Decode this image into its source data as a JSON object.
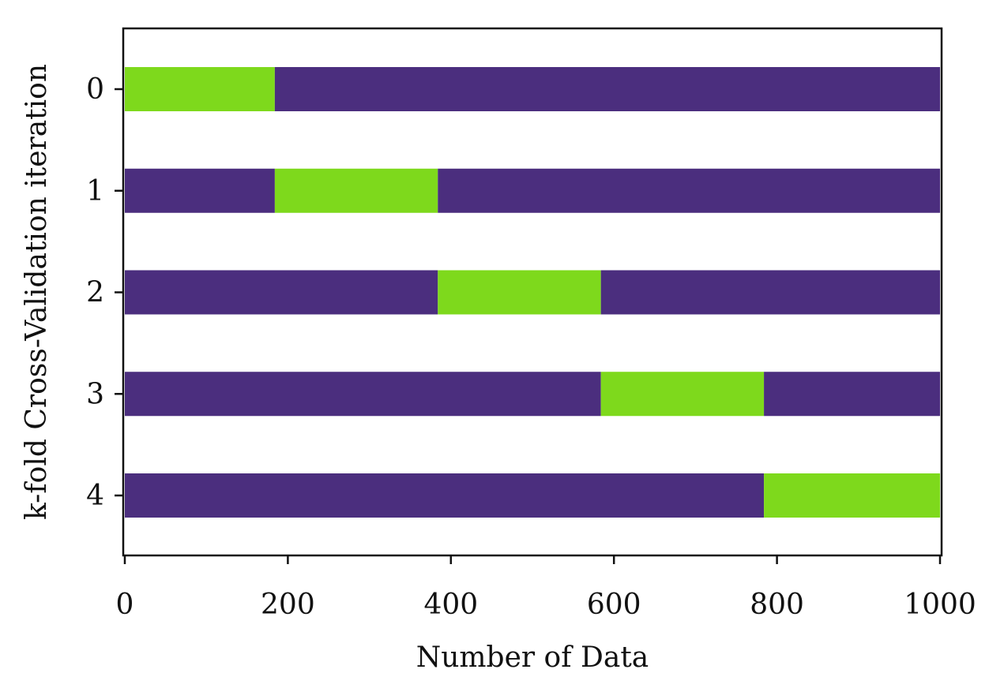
{
  "chart_data": {
    "type": "bar",
    "orientation": "horizontal",
    "stacked": true,
    "title": "",
    "xlabel": "Number of Data",
    "ylabel": "k-fold Cross-Validation iteration",
    "xlim": [
      0,
      1000
    ],
    "xticks": [
      0,
      200,
      400,
      600,
      800,
      1000
    ],
    "categories": [
      "0",
      "1",
      "2",
      "3",
      "4"
    ],
    "grid": false,
    "legend": "none",
    "colors": {
      "train": "#4b2e7e",
      "validation": "#7ed91c",
      "axis": "#111111"
    },
    "iterations": [
      {
        "label": "0",
        "segments": [
          {
            "role": "validation",
            "start": 0,
            "end": 184
          },
          {
            "role": "train",
            "start": 184,
            "end": 1000
          }
        ]
      },
      {
        "label": "1",
        "segments": [
          {
            "role": "train",
            "start": 0,
            "end": 184
          },
          {
            "role": "validation",
            "start": 184,
            "end": 384
          },
          {
            "role": "train",
            "start": 384,
            "end": 1000
          }
        ]
      },
      {
        "label": "2",
        "segments": [
          {
            "role": "train",
            "start": 0,
            "end": 384
          },
          {
            "role": "validation",
            "start": 384,
            "end": 584
          },
          {
            "role": "train",
            "start": 584,
            "end": 1000
          }
        ]
      },
      {
        "label": "3",
        "segments": [
          {
            "role": "train",
            "start": 0,
            "end": 584
          },
          {
            "role": "validation",
            "start": 584,
            "end": 784
          },
          {
            "role": "train",
            "start": 784,
            "end": 1000
          }
        ]
      },
      {
        "label": "4",
        "segments": [
          {
            "role": "train",
            "start": 0,
            "end": 784
          },
          {
            "role": "validation",
            "start": 784,
            "end": 1000
          }
        ]
      }
    ]
  }
}
